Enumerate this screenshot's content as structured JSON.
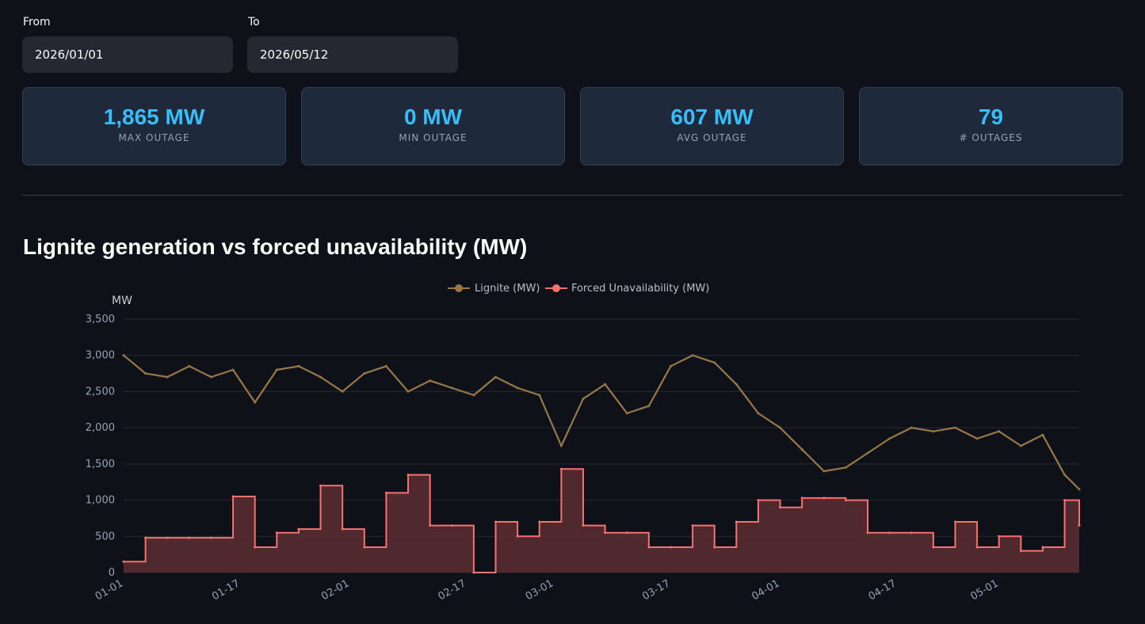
{
  "filters": {
    "from_label": "From",
    "from_value": "2026/01/01",
    "to_label": "To",
    "to_value": "2026/05/12"
  },
  "metrics": [
    {
      "value": "1,865 MW",
      "label": "MAX OUTAGE"
    },
    {
      "value": "0 MW",
      "label": "MIN OUTAGE"
    },
    {
      "value": "607 MW",
      "label": "AVG OUTAGE"
    },
    {
      "value": "79",
      "label": "# OUTAGES"
    }
  ],
  "section_title": "Lignite generation vs forced unavailability (MW)",
  "colors": {
    "lignite": "#98784a",
    "forced": "#f87171",
    "forced_fill": "#5a2e33",
    "accent": "#38bdf8"
  },
  "chart_data": {
    "type": "line",
    "title": "Lignite generation vs forced unavailability (MW)",
    "ylabel": "MW",
    "xlabel": "",
    "ylim": [
      0,
      3500
    ],
    "yticks": [
      "0",
      "500",
      "1,000",
      "1,500",
      "2,000",
      "2,500",
      "3,000",
      "3,500"
    ],
    "xticks": [
      "01-01",
      "01-17",
      "02-01",
      "02-17",
      "03-01",
      "03-17",
      "04-01",
      "04-17",
      "05-01"
    ],
    "legend_position": "top-center",
    "grid": true,
    "x_dates": [
      "2026-01-01",
      "2026-01-04",
      "2026-01-07",
      "2026-01-10",
      "2026-01-13",
      "2026-01-16",
      "2026-01-19",
      "2026-01-22",
      "2026-01-25",
      "2026-01-28",
      "2026-01-31",
      "2026-02-03",
      "2026-02-06",
      "2026-02-09",
      "2026-02-12",
      "2026-02-15",
      "2026-02-18",
      "2026-02-21",
      "2026-02-24",
      "2026-02-27",
      "2026-03-02",
      "2026-03-05",
      "2026-03-08",
      "2026-03-11",
      "2026-03-14",
      "2026-03-17",
      "2026-03-20",
      "2026-03-23",
      "2026-03-26",
      "2026-03-29",
      "2026-04-01",
      "2026-04-04",
      "2026-04-07",
      "2026-04-10",
      "2026-04-13",
      "2026-04-16",
      "2026-04-19",
      "2026-04-22",
      "2026-04-25",
      "2026-04-28",
      "2026-05-01",
      "2026-05-04",
      "2026-05-07",
      "2026-05-10",
      "2026-05-12"
    ],
    "series": [
      {
        "name": "Lignite (MW)",
        "values": [
          3000,
          2750,
          2700,
          2850,
          2700,
          2800,
          2350,
          2800,
          2850,
          2700,
          2500,
          2750,
          2850,
          2500,
          2650,
          2550,
          2450,
          2700,
          2550,
          2450,
          1750,
          2400,
          2600,
          2200,
          2300,
          2850,
          3000,
          2900,
          2600,
          2200,
          2000,
          1700,
          1400,
          1450,
          1650,
          1850,
          2000,
          1950,
          2000,
          1850,
          1950,
          1750,
          1900,
          1350,
          1150
        ]
      },
      {
        "name": "Forced Unavailability (MW)",
        "values": [
          150,
          480,
          480,
          480,
          480,
          1050,
          350,
          550,
          600,
          1200,
          600,
          350,
          1100,
          1350,
          650,
          650,
          0,
          700,
          500,
          700,
          1430,
          650,
          550,
          550,
          350,
          350,
          650,
          350,
          700,
          1000,
          900,
          1030,
          1030,
          1000,
          550,
          550,
          550,
          350,
          700,
          350,
          500,
          300,
          350,
          1000,
          650
        ]
      }
    ]
  }
}
